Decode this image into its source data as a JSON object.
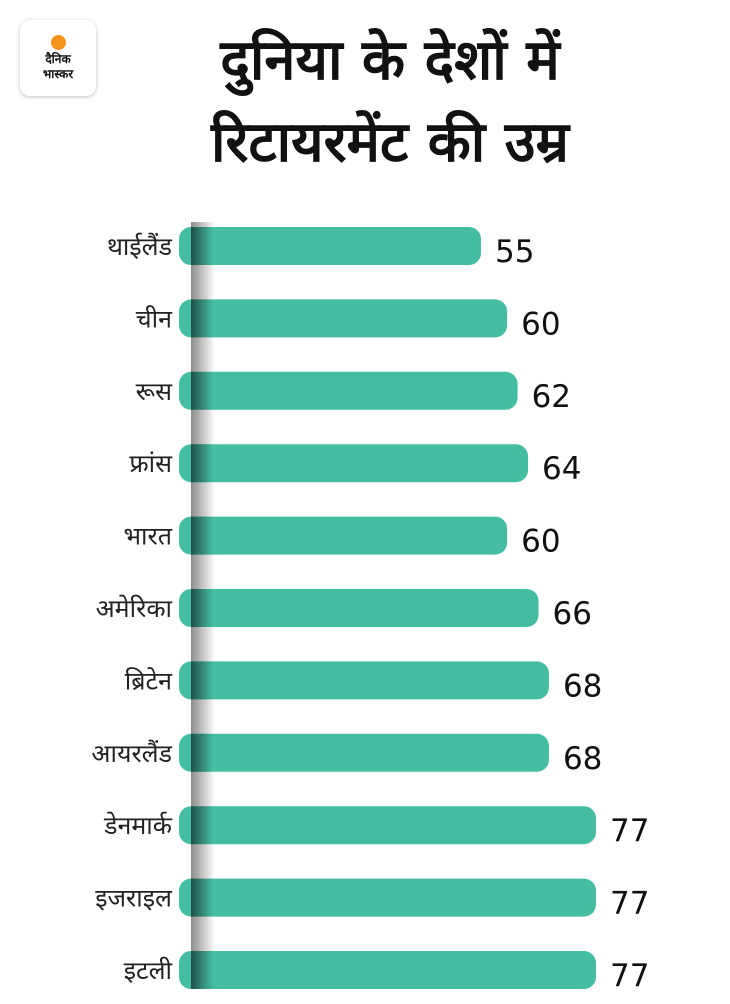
{
  "brand": {
    "line1": "दैनिक",
    "line2": "भास्कर",
    "sun_color": "#f7941d"
  },
  "title": {
    "line1": "दुनिया के देशों में",
    "line2": "रिटायरमेंट की उम्र"
  },
  "colors": {
    "bar": "#45bda3",
    "axis_dark": "#1f4a41"
  },
  "chart_data": {
    "type": "bar",
    "orientation": "horizontal",
    "title": "दुनिया के देशों में रिटायरमेंट की उम्र",
    "categories": [
      "थाईलैंड",
      "चीन",
      "रूस",
      "फ्रांस",
      "भारत",
      "अमेरिका",
      "ब्रिटेन",
      "आयरलैंड",
      "डेनमार्क",
      "इजराइल",
      "इटली"
    ],
    "values": [
      55,
      60,
      62,
      64,
      60,
      66,
      68,
      68,
      77,
      77,
      77
    ],
    "xlabel": "",
    "ylabel": "",
    "grid": false
  }
}
